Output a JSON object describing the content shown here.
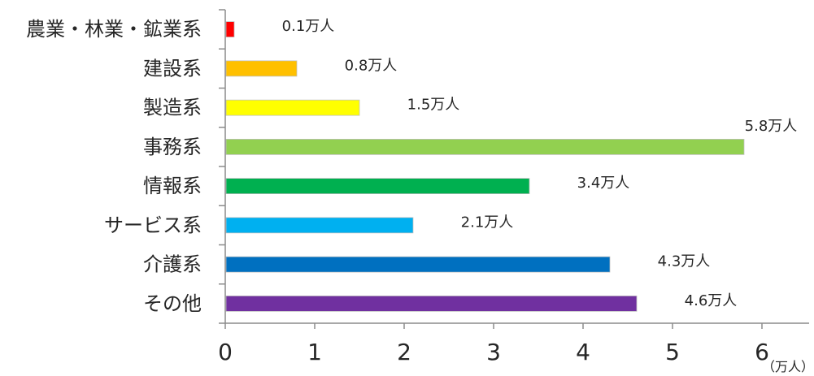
{
  "chart_data": {
    "type": "bar",
    "orientation": "horizontal",
    "categories": [
      "農業・林業・鉱業系",
      "建設系",
      "製造系",
      "事務系",
      "情報系",
      "サービス系",
      "介護系",
      "その他"
    ],
    "values": [
      0.1,
      0.8,
      1.5,
      5.8,
      3.4,
      2.1,
      4.3,
      4.6
    ],
    "data_labels": [
      "0.1万人",
      "0.8万人",
      "1.5万人",
      "5.8万人",
      "3.4万人",
      "2.1万人",
      "4.3万人",
      "4.6万人"
    ],
    "colors": [
      "#ff0000",
      "#ffc000",
      "#ffff00",
      "#92d050",
      "#00b050",
      "#00b0f0",
      "#0070c0",
      "#7030a0"
    ],
    "bar_border_color": "#bfbfbf",
    "x_ticks": [
      0,
      1,
      2,
      3,
      4,
      5,
      6
    ],
    "x_tick_labels": [
      "0",
      "1",
      "2",
      "3",
      "4",
      "5",
      "6"
    ],
    "xlim": [
      0,
      6
    ],
    "x_unit_label": "（万人）",
    "title": "",
    "xlabel": "",
    "ylabel": "",
    "grid": false,
    "legend": "none"
  }
}
